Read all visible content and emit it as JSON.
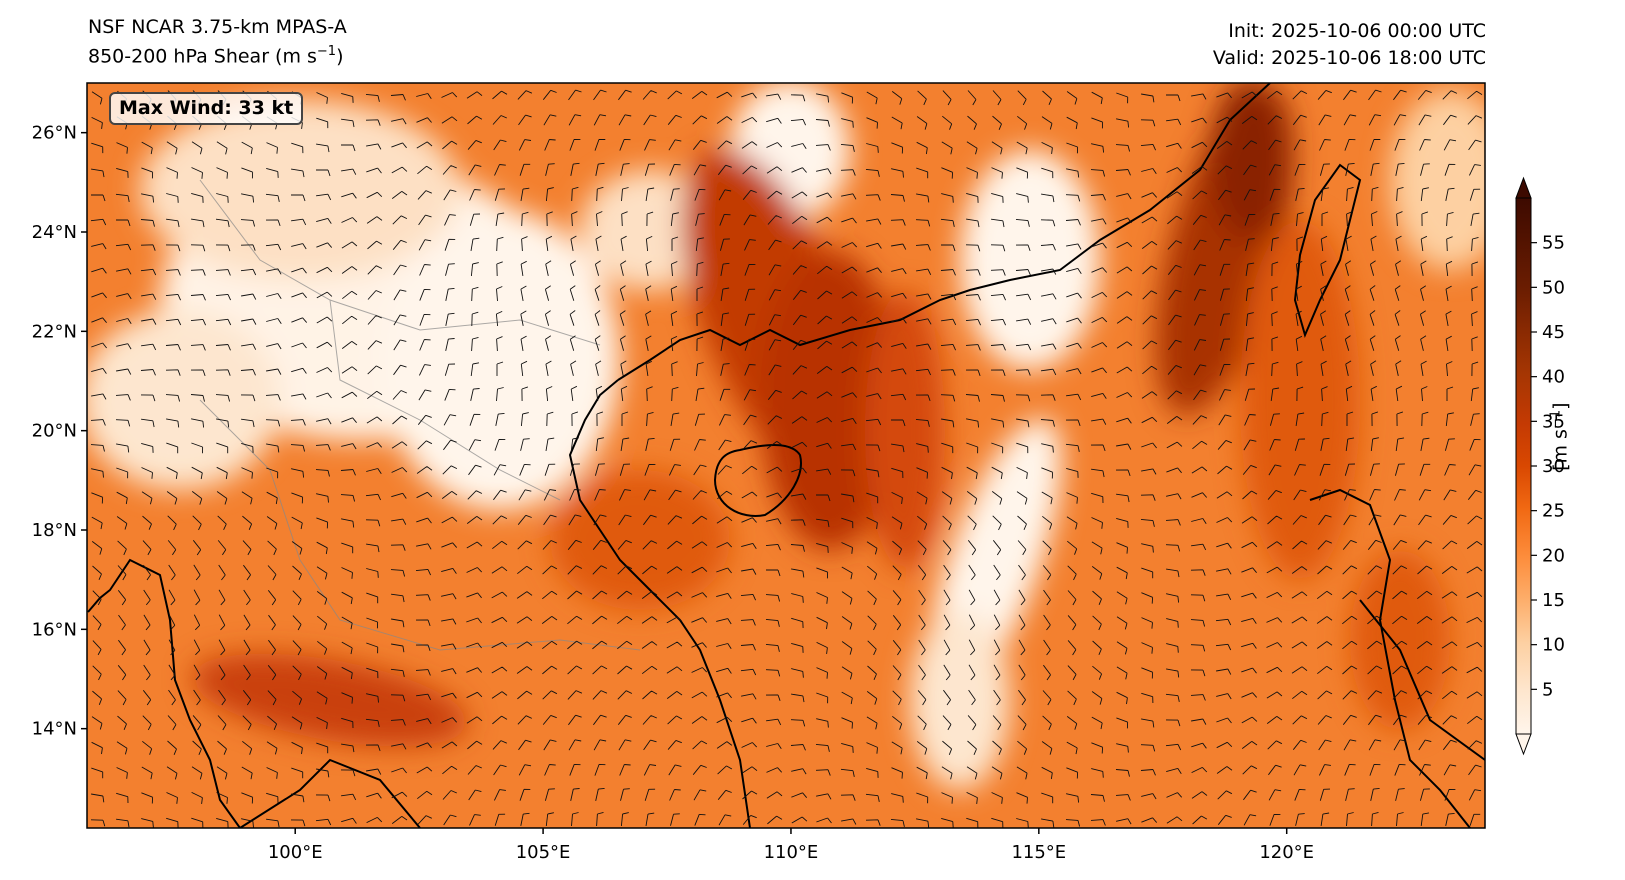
{
  "header": {
    "model": "NSF NCAR 3.75-km MPAS-A",
    "field_prefix": "850-200 hPa Shear (m s",
    "field_sup": "−1",
    "field_suffix": ")",
    "init": "Init: 2025-10-06 00:00 UTC",
    "valid": "Valid: 2025-10-06 18:00 UTC"
  },
  "map": {
    "lon_range": [
      95.8,
      124.0
    ],
    "lat_range": [
      12.0,
      27.0
    ],
    "lon_ticks": [
      100,
      105,
      110,
      115,
      120
    ],
    "lon_tick_labels": [
      "100°E",
      "105°E",
      "110°E",
      "115°E",
      "120°E"
    ],
    "lat_ticks": [
      14,
      16,
      18,
      20,
      22,
      24,
      26
    ],
    "lat_tick_labels": [
      "14°N",
      "16°N",
      "18°N",
      "20°N",
      "22°N",
      "24°N",
      "26°N"
    ],
    "annotation": "Max Wind: 33 kt",
    "features": [
      "shear-shading",
      "wind-barbs",
      "coastlines",
      "country-borders"
    ]
  },
  "colorbar": {
    "ticks": [
      5,
      10,
      15,
      20,
      25,
      30,
      35,
      40,
      45,
      50,
      55
    ],
    "tick_labels": [
      "5",
      "10",
      "15",
      "20",
      "25",
      "30",
      "35",
      "40",
      "45",
      "50",
      "55"
    ],
    "label_prefix": "[m s",
    "label_sup": "−1",
    "label_suffix": "]",
    "range": [
      0,
      60
    ],
    "colors": [
      "#fff5eb",
      "#fee6ce",
      "#fdd0a2",
      "#fdae6b",
      "#fd8d3c",
      "#f16913",
      "#d94801",
      "#c43a03",
      "#a63603",
      "#8a2a02",
      "#6b1d01",
      "#3d0a00"
    ]
  }
}
